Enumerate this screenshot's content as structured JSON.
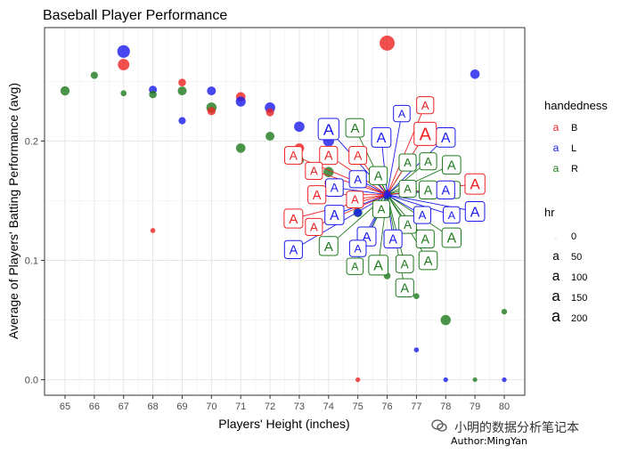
{
  "chart_data": {
    "type": "scatter",
    "title": "Baseball Player Performance",
    "xlabel": "Players' Height (inches)",
    "ylabel": "Average of Players' Batting Performance (avg)",
    "xlim": [
      64.3,
      80.7
    ],
    "ylim": [
      -0.013,
      0.295
    ],
    "xticks": [
      65,
      66,
      67,
      68,
      69,
      70,
      71,
      72,
      73,
      74,
      75,
      76,
      77,
      78,
      79,
      80
    ],
    "yticks": [
      0.0,
      0.1,
      0.2
    ],
    "ytick_labels": [
      "0.0",
      "0.1",
      "0.2"
    ],
    "grid": true,
    "colors": {
      "B": "#ee2222",
      "L": "#1a1aee",
      "R": "#1e7a1e"
    },
    "legend": {
      "position": "right",
      "color_title": "handedness",
      "color_items": [
        "B",
        "L",
        "R"
      ],
      "size_title": "hr",
      "size_items": [
        "0",
        "50",
        "100",
        "150",
        "200"
      ]
    },
    "points": [
      {
        "x": 65,
        "y": 0.242,
        "group": "R",
        "hr": 60
      },
      {
        "x": 66,
        "y": 0.255,
        "group": "R",
        "hr": 30
      },
      {
        "x": 67,
        "y": 0.275,
        "group": "L",
        "hr": 140
      },
      {
        "x": 67,
        "y": 0.264,
        "group": "B",
        "hr": 110
      },
      {
        "x": 67,
        "y": 0.24,
        "group": "R",
        "hr": 15
      },
      {
        "x": 68,
        "y": 0.243,
        "group": "L",
        "hr": 40
      },
      {
        "x": 68,
        "y": 0.239,
        "group": "R",
        "hr": 35
      },
      {
        "x": 68,
        "y": 0.125,
        "group": "B",
        "hr": 8
      },
      {
        "x": 69,
        "y": 0.249,
        "group": "B",
        "hr": 35
      },
      {
        "x": 69,
        "y": 0.242,
        "group": "R",
        "hr": 55
      },
      {
        "x": 69,
        "y": 0.217,
        "group": "L",
        "hr": 30
      },
      {
        "x": 70,
        "y": 0.242,
        "group": "L",
        "hr": 55
      },
      {
        "x": 70,
        "y": 0.228,
        "group": "R",
        "hr": 80
      },
      {
        "x": 70,
        "y": 0.225,
        "group": "B",
        "hr": 45
      },
      {
        "x": 71,
        "y": 0.237,
        "group": "B",
        "hr": 65
      },
      {
        "x": 71,
        "y": 0.233,
        "group": "L",
        "hr": 75
      },
      {
        "x": 71,
        "y": 0.194,
        "group": "R",
        "hr": 65
      },
      {
        "x": 72,
        "y": 0.228,
        "group": "L",
        "hr": 85
      },
      {
        "x": 72,
        "y": 0.224,
        "group": "B",
        "hr": 40
      },
      {
        "x": 72,
        "y": 0.204,
        "group": "R",
        "hr": 55
      },
      {
        "x": 73,
        "y": 0.212,
        "group": "L",
        "hr": 85
      },
      {
        "x": 73,
        "y": 0.194,
        "group": "B",
        "hr": 70
      },
      {
        "x": 73,
        "y": 0.184,
        "group": "R",
        "hr": 60
      },
      {
        "x": 74,
        "y": 0.2,
        "group": "L",
        "hr": 100
      },
      {
        "x": 74,
        "y": 0.174,
        "group": "R",
        "hr": 80
      },
      {
        "x": 74,
        "y": 0.165,
        "group": "B",
        "hr": 45
      },
      {
        "x": 75,
        "y": 0.14,
        "group": "R",
        "hr": 60
      },
      {
        "x": 75,
        "y": 0.14,
        "group": "L",
        "hr": 40
      },
      {
        "x": 75,
        "y": 0.0,
        "group": "B",
        "hr": 6
      },
      {
        "x": 76,
        "y": 0.282,
        "group": "B",
        "hr": 220
      },
      {
        "x": 76,
        "y": 0.087,
        "group": "R",
        "hr": 25
      },
      {
        "x": 76,
        "y": 0.155,
        "group": "B",
        "hr": 60
      },
      {
        "x": 76,
        "y": 0.155,
        "group": "L",
        "hr": 70
      },
      {
        "x": 76,
        "y": 0.155,
        "group": "R",
        "hr": 50
      },
      {
        "x": 77,
        "y": 0.07,
        "group": "R",
        "hr": 15
      },
      {
        "x": 77,
        "y": 0.025,
        "group": "L",
        "hr": 8
      },
      {
        "x": 78,
        "y": 0.05,
        "group": "R",
        "hr": 80
      },
      {
        "x": 78,
        "y": 0.0,
        "group": "L",
        "hr": 6
      },
      {
        "x": 79,
        "y": 0.256,
        "group": "L",
        "hr": 65
      },
      {
        "x": 79,
        "y": 0.0,
        "group": "R",
        "hr": 5
      },
      {
        "x": 80,
        "y": 0.057,
        "group": "R",
        "hr": 12
      },
      {
        "x": 80,
        "y": 0.0,
        "group": "L",
        "hr": 6
      }
    ],
    "label_points": {
      "B": [
        {
          "x": 77.3,
          "y": 0.206,
          "size": 220
        },
        {
          "x": 79.0,
          "y": 0.164,
          "size": 120
        },
        {
          "x": 77.3,
          "y": 0.23,
          "size": 40
        },
        {
          "x": 72.8,
          "y": 0.188,
          "size": 50
        },
        {
          "x": 74.0,
          "y": 0.188,
          "size": 60
        },
        {
          "x": 75.0,
          "y": 0.188,
          "size": 55
        },
        {
          "x": 73.5,
          "y": 0.175,
          "size": 40
        },
        {
          "x": 73.6,
          "y": 0.155,
          "size": 60
        },
        {
          "x": 72.8,
          "y": 0.135,
          "size": 80
        },
        {
          "x": 73.5,
          "y": 0.128,
          "size": 40
        },
        {
          "x": 74.9,
          "y": 0.151,
          "size": 35
        }
      ],
      "L": [
        {
          "x": 74.0,
          "y": 0.21,
          "size": 150
        },
        {
          "x": 75.8,
          "y": 0.203,
          "size": 100
        },
        {
          "x": 78.0,
          "y": 0.203,
          "size": 90
        },
        {
          "x": 76.5,
          "y": 0.223,
          "size": 30
        },
        {
          "x": 74.2,
          "y": 0.161,
          "size": 50
        },
        {
          "x": 75.0,
          "y": 0.168,
          "size": 40
        },
        {
          "x": 78.0,
          "y": 0.159,
          "size": 60
        },
        {
          "x": 79.0,
          "y": 0.141,
          "size": 100
        },
        {
          "x": 74.2,
          "y": 0.138,
          "size": 90
        },
        {
          "x": 75.3,
          "y": 0.12,
          "size": 80
        },
        {
          "x": 76.2,
          "y": 0.118,
          "size": 60
        },
        {
          "x": 77.2,
          "y": 0.138,
          "size": 40
        },
        {
          "x": 78.2,
          "y": 0.138,
          "size": 30
        },
        {
          "x": 72.8,
          "y": 0.109,
          "size": 60
        },
        {
          "x": 75.0,
          "y": 0.11,
          "size": 30
        }
      ],
      "R": [
        {
          "x": 74.9,
          "y": 0.211,
          "size": 70
        },
        {
          "x": 76.7,
          "y": 0.182,
          "size": 40
        },
        {
          "x": 77.4,
          "y": 0.183,
          "size": 40
        },
        {
          "x": 78.2,
          "y": 0.18,
          "size": 70
        },
        {
          "x": 75.7,
          "y": 0.171,
          "size": 60
        },
        {
          "x": 76.7,
          "y": 0.16,
          "size": 40
        },
        {
          "x": 77.4,
          "y": 0.159,
          "size": 60
        },
        {
          "x": 78.2,
          "y": 0.159,
          "size": 40
        },
        {
          "x": 75.8,
          "y": 0.143,
          "size": 40
        },
        {
          "x": 76.7,
          "y": 0.13,
          "size": 50
        },
        {
          "x": 77.3,
          "y": 0.118,
          "size": 60
        },
        {
          "x": 78.2,
          "y": 0.119,
          "size": 90
        },
        {
          "x": 74.0,
          "y": 0.112,
          "size": 80
        },
        {
          "x": 75.7,
          "y": 0.096,
          "size": 100
        },
        {
          "x": 76.6,
          "y": 0.097,
          "size": 50
        },
        {
          "x": 77.4,
          "y": 0.1,
          "size": 70
        },
        {
          "x": 74.9,
          "y": 0.095,
          "size": 30
        },
        {
          "x": 76.6,
          "y": 0.077,
          "size": 60
        }
      ],
      "center": {
        "x": 76,
        "y": 0.155
      },
      "label_text": "A"
    }
  },
  "watermark": {
    "channel": "小明的数据分析笔记本",
    "author": "Author:MingYan"
  }
}
